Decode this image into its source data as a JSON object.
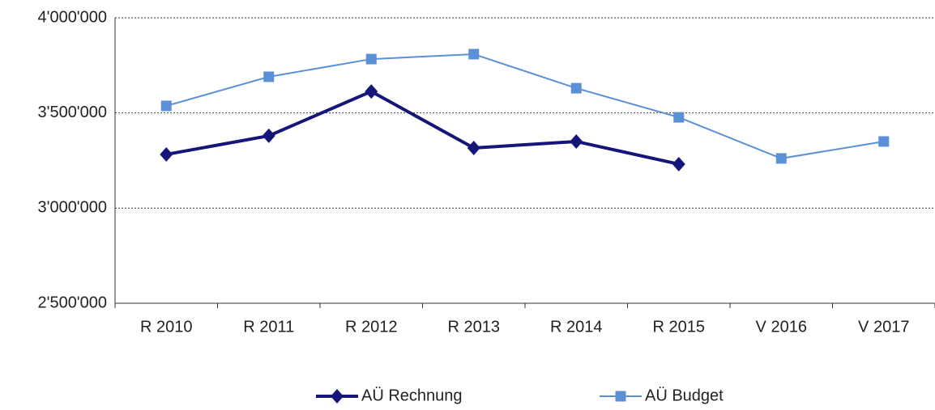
{
  "chart_data": {
    "type": "line",
    "categories": [
      "R 2010",
      "R 2011",
      "R 2012",
      "R 2013",
      "R 2014",
      "R 2015",
      "V 2016",
      "V 2017"
    ],
    "series": [
      {
        "name": "AÜ Rechnung",
        "color": "#16167a",
        "marker": "diamond",
        "width": 4,
        "values": [
          3282000,
          3380000,
          3613000,
          3316000,
          3350000,
          3231000,
          null,
          null
        ]
      },
      {
        "name": "AÜ Budget",
        "color": "#5b8fd6",
        "marker": "square",
        "width": 2,
        "values": [
          3537000,
          3690000,
          3783000,
          3809000,
          3630000,
          3477000,
          3261000,
          3350000
        ]
      }
    ],
    "ylim": [
      2500000,
      4000000
    ],
    "yticks": [
      {
        "value": 2500000,
        "label": "2'500'000"
      },
      {
        "value": 3000000,
        "label": "3'000'000"
      },
      {
        "value": 3500000,
        "label": "3'500'000"
      },
      {
        "value": 4000000,
        "label": "4'000'000"
      }
    ],
    "grid": true,
    "legend": "bottom"
  }
}
